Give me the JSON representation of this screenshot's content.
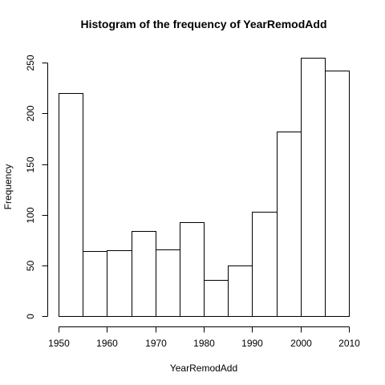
{
  "chart_data": {
    "type": "bar",
    "title": "Histogram of the frequency of YearRemodAdd",
    "xlabel": "YearRemodAdd",
    "ylabel": "Frequency",
    "bin_edges": [
      1950,
      1955,
      1960,
      1965,
      1970,
      1975,
      1980,
      1985,
      1990,
      1995,
      2000,
      2005,
      2010
    ],
    "values": [
      220,
      64,
      65,
      84,
      66,
      93,
      36,
      50,
      103,
      182,
      255,
      242
    ],
    "xlim": [
      1950,
      2010
    ],
    "ylim": [
      0,
      255
    ],
    "x_ticks": [
      "1950",
      "1960",
      "1970",
      "1980",
      "1990",
      "2000",
      "2010"
    ],
    "y_ticks": [
      "0",
      "50",
      "100",
      "150",
      "200",
      "250"
    ],
    "grid": false,
    "bar_fill": "#ffffff",
    "bar_stroke": "#000000"
  }
}
